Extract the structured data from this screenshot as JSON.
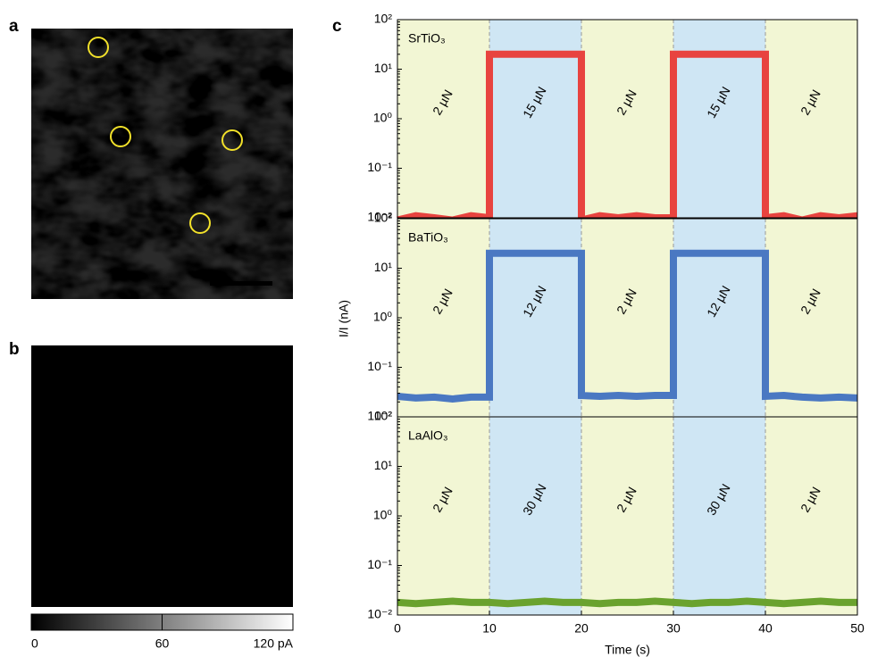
{
  "panel_labels": [
    "a",
    "b",
    "c"
  ],
  "colorbar": {
    "lim": [
      0,
      120
    ],
    "ticks": [
      0,
      60,
      {
        "value": 120,
        "label": "120 pA"
      }
    ]
  },
  "chart_data": {
    "type": "line",
    "xlabel": "Time (s)",
    "ylabel": "I/I (nA)",
    "xlim": [
      0,
      50
    ],
    "xticks": [
      0,
      10,
      20,
      30,
      40,
      50
    ],
    "ylim": [
      0.01,
      100
    ],
    "log_y": true,
    "yticks": [
      {
        "value": 0.01,
        "label": "10⁻²"
      },
      {
        "value": 0.1,
        "label": "10⁻¹"
      },
      {
        "value": 1,
        "label": "10⁰"
      },
      {
        "value": 10,
        "label": "10¹"
      },
      {
        "value": 100,
        "label": "10²"
      }
    ],
    "x": [
      0,
      2,
      4,
      6,
      8,
      10,
      10,
      12,
      14,
      16,
      18,
      20,
      20,
      22,
      24,
      26,
      28,
      30,
      30,
      32,
      34,
      36,
      38,
      40,
      40,
      42,
      44,
      46,
      48,
      50
    ],
    "series": [
      {
        "name": "SrTiO₃",
        "color": "#e8433f",
        "values": [
          0.009,
          0.011,
          0.01,
          0.009,
          0.011,
          0.01,
          20,
          20,
          20,
          20,
          20,
          20,
          0.009,
          0.011,
          0.01,
          0.011,
          0.01,
          0.01,
          20,
          20,
          20,
          20,
          20,
          20,
          0.01,
          0.011,
          0.009,
          0.011,
          0.01,
          0.011
        ],
        "regions": [
          {
            "x": [
              0,
              10
            ],
            "label": "2 µN",
            "color": "#f2f6d4"
          },
          {
            "x": [
              10,
              20
            ],
            "label": "15 µN",
            "color": "#cfe6f4"
          },
          {
            "x": [
              20,
              30
            ],
            "label": "2 µN",
            "color": "#f2f6d4"
          },
          {
            "x": [
              30,
              40
            ],
            "label": "15 µN",
            "color": "#cfe6f4"
          },
          {
            "x": [
              40,
              50
            ],
            "label": "2 µN",
            "color": "#f2f6d4"
          }
        ]
      },
      {
        "name": "BaTiO₃",
        "color": "#4a78c2",
        "values": [
          0.026,
          0.024,
          0.025,
          0.023,
          0.025,
          0.025,
          20,
          20,
          20,
          20,
          20,
          20,
          0.027,
          0.026,
          0.027,
          0.026,
          0.027,
          0.027,
          20,
          20,
          20,
          20,
          20,
          20,
          0.026,
          0.027,
          0.025,
          0.024,
          0.025,
          0.024
        ],
        "regions": [
          {
            "x": [
              0,
              10
            ],
            "label": "2 µN",
            "color": "#f2f6d4"
          },
          {
            "x": [
              10,
              20
            ],
            "label": "12 µN",
            "color": "#cfe6f4"
          },
          {
            "x": [
              20,
              30
            ],
            "label": "2 µN",
            "color": "#f2f6d4"
          },
          {
            "x": [
              30,
              40
            ],
            "label": "12 µN",
            "color": "#cfe6f4"
          },
          {
            "x": [
              40,
              50
            ],
            "label": "2 µN",
            "color": "#f2f6d4"
          }
        ]
      },
      {
        "name": "LaAlO₃",
        "color": "#6aa22e",
        "values": [
          0.018,
          0.017,
          0.018,
          0.019,
          0.018,
          0.018,
          0.018,
          0.017,
          0.018,
          0.019,
          0.018,
          0.018,
          0.018,
          0.017,
          0.018,
          0.018,
          0.019,
          0.018,
          0.018,
          0.017,
          0.018,
          0.018,
          0.019,
          0.018,
          0.018,
          0.017,
          0.018,
          0.019,
          0.018,
          0.018
        ],
        "regions": [
          {
            "x": [
              0,
              10
            ],
            "label": "2 µN",
            "color": "#f2f6d4"
          },
          {
            "x": [
              10,
              20
            ],
            "label": "30 µN",
            "color": "#cfe6f4"
          },
          {
            "x": [
              20,
              30
            ],
            "label": "2 µN",
            "color": "#f2f6d4"
          },
          {
            "x": [
              30,
              40
            ],
            "label": "30 µN",
            "color": "#cfe6f4"
          },
          {
            "x": [
              40,
              50
            ],
            "label": "2 µN",
            "color": "#f2f6d4"
          }
        ]
      }
    ]
  }
}
